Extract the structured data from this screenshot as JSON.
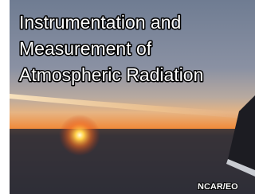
{
  "title_lines": [
    "Instrumentation and",
    "Measurement of",
    "Atmospheric Radiation"
  ],
  "credit": "NCAR/EO"
}
